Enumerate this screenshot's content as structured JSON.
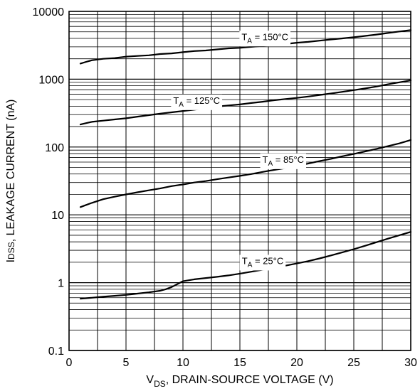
{
  "chart_data": {
    "type": "line",
    "x_scale": "linear",
    "y_scale": "log",
    "xlim": [
      0,
      30
    ],
    "ylim": [
      0.1,
      10000
    ],
    "grid": true,
    "x_ticks": [
      "0",
      "5",
      "10",
      "15",
      "20",
      "25",
      "30"
    ],
    "y_ticks": [
      "0.1",
      "1",
      "10",
      "100",
      "1000",
      "10000"
    ],
    "xlabel": {
      "main": "V",
      "sub": "DS",
      "rest": ", DRAIN-SOURCE VOLTAGE (V)"
    },
    "ylabel": {
      "main": "I",
      "sub": "DSS",
      "rest": ", LEAKAGE CURRENT (nA)"
    },
    "series": [
      {
        "name": {
          "main": "T",
          "sub": "A",
          "rest": " = 150°C"
        },
        "label_x": 17.2,
        "x": [
          1,
          1.5,
          2,
          3,
          4,
          5,
          6,
          7,
          8,
          9,
          10,
          11,
          12,
          13,
          14,
          15,
          16,
          17,
          18,
          19,
          20,
          21,
          22,
          23,
          24,
          25,
          26,
          27,
          28,
          29,
          30
        ],
        "y": [
          1700,
          1800,
          1900,
          2000,
          2050,
          2150,
          2200,
          2250,
          2350,
          2400,
          2500,
          2600,
          2650,
          2750,
          2850,
          2900,
          3000,
          3100,
          3200,
          3300,
          3450,
          3550,
          3700,
          3850,
          4000,
          4150,
          4350,
          4550,
          4800,
          5050,
          5300
        ]
      },
      {
        "name": {
          "main": "T",
          "sub": "A",
          "rest": " = 125°C"
        },
        "label_x": 11.2,
        "x": [
          1,
          1.5,
          2,
          3,
          4,
          5,
          6,
          7,
          8,
          9,
          10,
          11,
          12,
          13,
          14,
          15,
          16,
          17,
          18,
          19,
          20,
          21,
          22,
          23,
          24,
          25,
          26,
          27,
          28,
          29,
          30
        ],
        "y": [
          215,
          225,
          235,
          245,
          255,
          265,
          280,
          295,
          310,
          325,
          340,
          355,
          375,
          395,
          410,
          425,
          445,
          465,
          490,
          510,
          530,
          555,
          585,
          615,
          650,
          690,
          730,
          780,
          840,
          900,
          960
        ]
      },
      {
        "name": {
          "main": "T",
          "sub": "A",
          "rest": " = 85°C"
        },
        "label_x": 18.8,
        "x": [
          1,
          1.5,
          2,
          3,
          4,
          5,
          6,
          7,
          8,
          9,
          10,
          11,
          12,
          13,
          14,
          15,
          16,
          17,
          18,
          19,
          20,
          21,
          22,
          23,
          24,
          25,
          26,
          27,
          28,
          29,
          30
        ],
        "y": [
          13,
          14,
          15,
          17,
          18.5,
          20,
          21.5,
          23,
          24.5,
          26.5,
          28,
          30,
          31.5,
          33.5,
          35.5,
          37.5,
          40,
          43,
          46,
          49,
          53,
          57,
          62,
          67,
          73,
          79,
          86,
          94,
          103,
          113,
          127
        ]
      },
      {
        "name": {
          "main": "T",
          "sub": "A",
          "rest": " = 25°C"
        },
        "label_x": 17.0,
        "x": [
          1,
          1.5,
          2,
          3,
          4,
          5,
          6,
          7,
          8,
          8.5,
          9,
          10,
          11,
          12,
          13,
          14,
          15,
          16,
          17,
          18,
          19,
          20,
          21,
          22,
          23,
          24,
          25,
          26,
          27,
          28,
          29,
          30
        ],
        "y": [
          0.58,
          0.59,
          0.6,
          0.62,
          0.64,
          0.66,
          0.69,
          0.72,
          0.76,
          0.8,
          0.86,
          1.05,
          1.12,
          1.17,
          1.22,
          1.28,
          1.36,
          1.45,
          1.55,
          1.66,
          1.78,
          1.92,
          2.08,
          2.28,
          2.52,
          2.8,
          3.12,
          3.5,
          3.95,
          4.45,
          5.0,
          5.6
        ]
      }
    ]
  }
}
